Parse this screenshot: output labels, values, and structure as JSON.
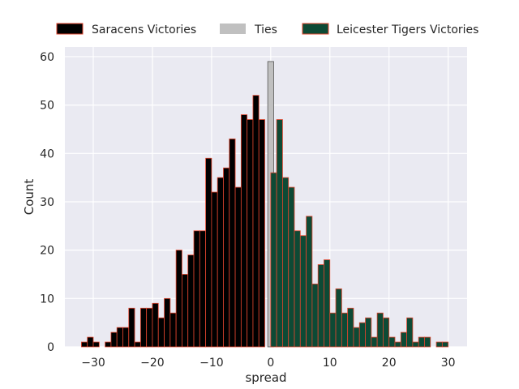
{
  "chart_data": {
    "type": "bar",
    "xlabel": "spread",
    "ylabel": "Count",
    "xlim": [
      -34.8,
      33.2
    ],
    "ylim": [
      0,
      62
    ],
    "xticks": [
      -30,
      -20,
      -10,
      0,
      10,
      20,
      30
    ],
    "xtick_labels": [
      "−30",
      "−20",
      "−10",
      "0",
      "10",
      "20",
      "30"
    ],
    "yticks": [
      0,
      10,
      20,
      30,
      40,
      50,
      60
    ],
    "bin_width": 1,
    "grid": true,
    "legend_position": "top, above plot",
    "series": [
      {
        "name": "Saracens Victories",
        "color": "#000000",
        "edge_color": "#e0452e",
        "x": [
          -32,
          -31,
          -30,
          -29,
          -28,
          -27,
          -26,
          -25,
          -24,
          -23,
          -22,
          -21,
          -20,
          -19,
          -18,
          -17,
          -16,
          -15,
          -14,
          -13,
          -12,
          -11,
          -10,
          -9,
          -8,
          -7,
          -6,
          -5,
          -4,
          -3,
          -2,
          -1
        ],
        "values": [
          1,
          2,
          1,
          0,
          1,
          3,
          4,
          4,
          8,
          1,
          8,
          8,
          9,
          6,
          10,
          7,
          20,
          15,
          19,
          24,
          24,
          39,
          32,
          35,
          37,
          43,
          33,
          48,
          47,
          52,
          47,
          0
        ]
      },
      {
        "name": "Ties",
        "color": "#c0c0c0",
        "edge_color": "#555555",
        "x": [
          -0.5
        ],
        "values": [
          59
        ]
      },
      {
        "name": "Leicester Tigers Victories",
        "color": "#0d4a35",
        "edge_color": "#e0452e",
        "x": [
          0,
          1,
          2,
          3,
          4,
          5,
          6,
          7,
          8,
          9,
          10,
          11,
          12,
          13,
          14,
          15,
          16,
          17,
          18,
          19,
          20,
          21,
          22,
          23,
          24,
          25,
          26,
          27,
          28,
          29,
          30
        ],
        "values": [
          36,
          47,
          35,
          33,
          24,
          23,
          27,
          13,
          17,
          18,
          7,
          12,
          7,
          8,
          4,
          5,
          6,
          2,
          7,
          6,
          2,
          1,
          3,
          6,
          1,
          2,
          2,
          0,
          1,
          1,
          0
        ]
      }
    ]
  },
  "colors": {
    "plot_background": "#eaeaf2",
    "grid": "#ffffff",
    "text": "#262626"
  }
}
